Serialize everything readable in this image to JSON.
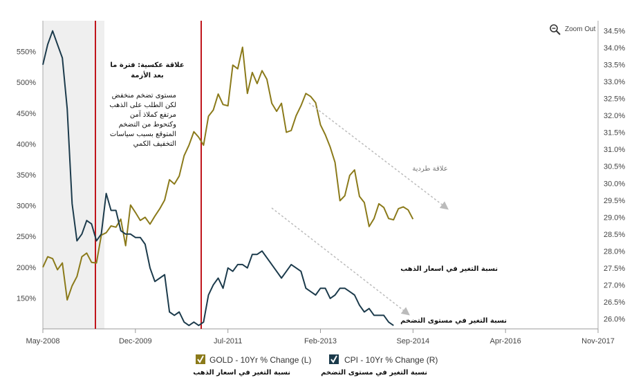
{
  "zoom_out_label": "Zoom Out",
  "chart_data": {
    "type": "line",
    "x_axis": {
      "ticks": [
        "May-2008",
        "Dec-2009",
        "Jul-2011",
        "Feb-2013",
        "Sep-2014",
        "Apr-2016",
        "Nov-2017"
      ]
    },
    "y_left": {
      "ticks": [
        "150%",
        "200%",
        "250%",
        "300%",
        "350%",
        "400%",
        "450%",
        "500%",
        "550%"
      ],
      "range": [
        100,
        600
      ]
    },
    "y_right": {
      "ticks": [
        "26.0%",
        "26.5%",
        "27.0%",
        "27.5%",
        "28.0%",
        "28.5%",
        "29.0%",
        "29.5%",
        "30.0%",
        "30.5%",
        "31.0%",
        "31.5%",
        "32.0%",
        "32.5%",
        "33.0%",
        "33.5%",
        "34.0%",
        "34.5%"
      ],
      "range": [
        25.7,
        34.8
      ]
    },
    "shaded_period": [
      "May-2008",
      "Mar-2009"
    ],
    "vertical_markers": [
      "Feb-2009",
      "Jan-2011"
    ],
    "series": [
      {
        "name": "GOLD - 10Yr % Change (L)",
        "axis": "left",
        "color": "#8B7A1A",
        "points": [
          [
            "2008-05",
            200
          ],
          [
            "2008-06",
            217
          ],
          [
            "2008-07",
            214
          ],
          [
            "2008-08",
            196
          ],
          [
            "2008-09",
            207
          ],
          [
            "2008-10",
            147
          ],
          [
            "2008-11",
            170
          ],
          [
            "2008-12",
            185
          ],
          [
            "2009-01",
            217
          ],
          [
            "2009-02",
            223
          ],
          [
            "2009-03",
            208
          ],
          [
            "2009-04",
            207
          ],
          [
            "2009-05",
            252
          ],
          [
            "2009-06",
            256
          ],
          [
            "2009-07",
            267
          ],
          [
            "2009-08",
            265
          ],
          [
            "2009-09",
            278
          ],
          [
            "2009-10",
            235
          ],
          [
            "2009-11",
            301
          ],
          [
            "2009-12",
            289
          ],
          [
            "2010-01",
            276
          ],
          [
            "2010-02",
            281
          ],
          [
            "2010-03",
            270
          ],
          [
            "2010-04",
            283
          ],
          [
            "2010-05",
            295
          ],
          [
            "2010-06",
            309
          ],
          [
            "2010-07",
            342
          ],
          [
            "2010-08",
            335
          ],
          [
            "2010-09",
            348
          ],
          [
            "2010-10",
            381
          ],
          [
            "2010-11",
            398
          ],
          [
            "2010-12",
            420
          ],
          [
            "2011-01",
            411
          ],
          [
            "2011-02",
            398
          ],
          [
            "2011-03",
            445
          ],
          [
            "2011-04",
            455
          ],
          [
            "2011-05",
            481
          ],
          [
            "2011-06",
            464
          ],
          [
            "2011-07",
            462
          ],
          [
            "2011-08",
            528
          ],
          [
            "2011-09",
            522
          ],
          [
            "2011-10",
            557
          ],
          [
            "2011-11",
            482
          ],
          [
            "2011-12",
            516
          ],
          [
            "2012-01",
            498
          ],
          [
            "2012-02",
            519
          ],
          [
            "2012-03",
            505
          ],
          [
            "2012-04",
            466
          ],
          [
            "2012-05",
            453
          ],
          [
            "2012-06",
            466
          ],
          [
            "2012-07",
            419
          ],
          [
            "2012-08",
            422
          ],
          [
            "2012-09",
            446
          ],
          [
            "2012-10",
            462
          ],
          [
            "2012-11",
            482
          ],
          [
            "2012-12",
            477
          ],
          [
            "2013-01",
            467
          ],
          [
            "2013-02",
            431
          ],
          [
            "2013-03",
            415
          ],
          [
            "2013-04",
            395
          ],
          [
            "2013-05",
            370
          ],
          [
            "2013-06",
            308
          ],
          [
            "2013-07",
            316
          ],
          [
            "2013-08",
            349
          ],
          [
            "2013-09",
            358
          ],
          [
            "2013-10",
            315
          ],
          [
            "2013-11",
            305
          ],
          [
            "2013-12",
            266
          ],
          [
            "2014-01",
            279
          ],
          [
            "2014-02",
            303
          ],
          [
            "2014-03",
            297
          ],
          [
            "2014-04",
            279
          ],
          [
            "2014-05",
            277
          ],
          [
            "2014-06",
            295
          ],
          [
            "2014-07",
            298
          ],
          [
            "2014-08",
            293
          ],
          [
            "2014-09",
            278
          ]
        ]
      },
      {
        "name": "CPI - 10Yr % Change (R)",
        "axis": "right",
        "color": "#1B3A4B",
        "points": [
          [
            "2008-05",
            33.5
          ],
          [
            "2008-06",
            34.1
          ],
          [
            "2008-07",
            34.5
          ],
          [
            "2008-08",
            34.1
          ],
          [
            "2008-09",
            33.7
          ],
          [
            "2008-10",
            32.2
          ],
          [
            "2008-11",
            29.4
          ],
          [
            "2008-12",
            28.3
          ],
          [
            "2009-01",
            28.5
          ],
          [
            "2009-02",
            28.9
          ],
          [
            "2009-03",
            28.8
          ],
          [
            "2009-04",
            28.3
          ],
          [
            "2009-05",
            28.5
          ],
          [
            "2009-06",
            29.7
          ],
          [
            "2009-07",
            29.2
          ],
          [
            "2009-08",
            29.2
          ],
          [
            "2009-09",
            28.6
          ],
          [
            "2009-10",
            28.5
          ],
          [
            "2009-11",
            28.5
          ],
          [
            "2009-12",
            28.4
          ],
          [
            "2010-01",
            28.4
          ],
          [
            "2010-02",
            28.2
          ],
          [
            "2010-03",
            27.5
          ],
          [
            "2010-04",
            27.1
          ],
          [
            "2010-05",
            27.2
          ],
          [
            "2010-06",
            27.3
          ],
          [
            "2010-07",
            26.2
          ],
          [
            "2010-08",
            26.1
          ],
          [
            "2010-09",
            26.2
          ],
          [
            "2010-10",
            25.9
          ],
          [
            "2010-11",
            25.8
          ],
          [
            "2010-12",
            25.9
          ],
          [
            "2011-01",
            25.8
          ],
          [
            "2011-02",
            25.9
          ],
          [
            "2011-03",
            26.7
          ],
          [
            "2011-04",
            27.0
          ],
          [
            "2011-05",
            27.2
          ],
          [
            "2011-06",
            26.9
          ],
          [
            "2011-07",
            27.5
          ],
          [
            "2011-08",
            27.4
          ],
          [
            "2011-09",
            27.6
          ],
          [
            "2011-10",
            27.6
          ],
          [
            "2011-11",
            27.5
          ],
          [
            "2011-12",
            27.9
          ],
          [
            "2012-01",
            27.9
          ],
          [
            "2012-02",
            28.0
          ],
          [
            "2012-03",
            27.8
          ],
          [
            "2012-04",
            27.6
          ],
          [
            "2012-05",
            27.4
          ],
          [
            "2012-06",
            27.2
          ],
          [
            "2012-07",
            27.4
          ],
          [
            "2012-08",
            27.6
          ],
          [
            "2012-09",
            27.5
          ],
          [
            "2012-10",
            27.4
          ],
          [
            "2012-11",
            26.9
          ],
          [
            "2012-12",
            26.8
          ],
          [
            "2013-01",
            26.7
          ],
          [
            "2013-02",
            26.9
          ],
          [
            "2013-03",
            26.9
          ],
          [
            "2013-04",
            26.6
          ],
          [
            "2013-05",
            26.7
          ],
          [
            "2013-06",
            26.9
          ],
          [
            "2013-07",
            26.9
          ],
          [
            "2013-08",
            26.8
          ],
          [
            "2013-09",
            26.7
          ],
          [
            "2013-10",
            26.4
          ],
          [
            "2013-11",
            26.2
          ],
          [
            "2013-12",
            26.3
          ],
          [
            "2014-01",
            26.1
          ],
          [
            "2014-02",
            26.1
          ],
          [
            "2014-03",
            26.1
          ],
          [
            "2014-04",
            25.9
          ],
          [
            "2014-05",
            25.8
          ]
        ]
      }
    ],
    "annotations": [
      {
        "id": "crisis-title",
        "lines": [
          "علاقة عكسية: فترة ما",
          "بعد الأزمة"
        ],
        "style": "bold"
      },
      {
        "id": "crisis-body",
        "lines": [
          "مستوى تضخم منخفض",
          "لكن الطلب على الذهب",
          "مرتفع كملاذ آمن",
          "وكتحوط من التضخم",
          "المتوقع بسبب سياسات",
          "التخفيف الكمي"
        ],
        "style": "normal"
      },
      {
        "id": "positive-relation",
        "lines": [
          "علاقة طردية"
        ],
        "style": "grey"
      },
      {
        "id": "gold-change",
        "lines": [
          "نسبة التغير في اسعار الذهب"
        ],
        "style": "bold"
      },
      {
        "id": "cpi-change",
        "lines": [
          "نسبة التغير في مستوى التضخم"
        ],
        "style": "bold"
      }
    ]
  },
  "legend": {
    "items": [
      {
        "label": "GOLD - 10Yr % Change (L)",
        "sub": "نسبة التغير في اسعار الذهب",
        "color": "#8B7A1A"
      },
      {
        "label": "CPI - 10Yr % Change (R)",
        "sub": "نسبة التغير في مستوى التضخم",
        "color": "#1B3A4B"
      }
    ]
  }
}
